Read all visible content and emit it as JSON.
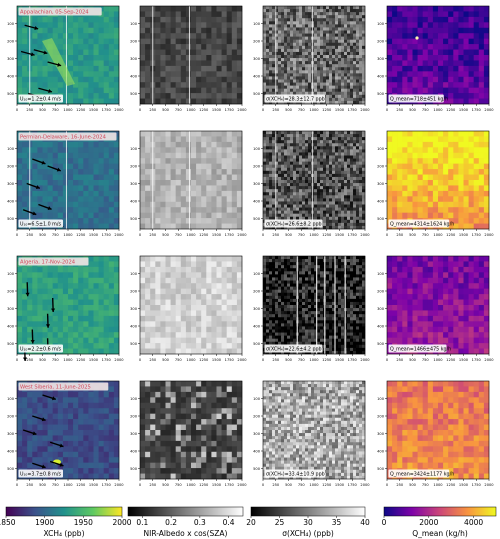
{
  "chart_data": {
    "type": "heatmap",
    "rows": [
      {
        "site": "Appalachian, 05-Sep-2024",
        "wind": "U₁₀=1.2±0.4 m/s",
        "sigma": "σ(XCH₄)=28.3±12.7 ppb",
        "q": "Q_mean=718±451 kg/h",
        "xch4_mean": 1930,
        "albedo_mean": 0.16,
        "sigma_mean": 28.3,
        "q_mean": 718,
        "plume": "faint diagonal"
      },
      {
        "site": "Permian-Delaware, 16-June-2024",
        "wind": "U₁₀=6.5±1.0 m/s",
        "sigma": "σ(XCH₄)=26.6±8.2 ppb",
        "q": "Q_mean=4314±1624 kg/h",
        "xch4_mean": 1905,
        "albedo_mean": 0.33,
        "sigma_mean": 26.6,
        "q_mean": 4314,
        "plume": "none"
      },
      {
        "site": "Algeria, 17-Nov-2024",
        "wind": "U₁₀=2.2±0.6 m/s",
        "sigma": "σ(XCH₄)=22.6±4.2 ppb",
        "q": "Q_mean=1466±475 kg/h",
        "xch4_mean": 1935,
        "albedo_mean": 0.38,
        "sigma_mean": 22.6,
        "q_mean": 1466,
        "plume": "none"
      },
      {
        "site": "West Siberia, 11-June-2025",
        "wind": "U₁₀=3.7±0.8 m/s",
        "sigma": "σ(XCH₄)=33.4±10.9 ppb",
        "q": "Q_mean=3424±1177 kg/h",
        "xch4_mean": 1885,
        "albedo_mean": 0.14,
        "sigma_mean": 33.4,
        "q_mean": 3424,
        "plume": "compact"
      }
    ],
    "x_ticks": [
      "0",
      "250",
      "500",
      "750",
      "1000",
      "1250",
      "1500",
      "1750",
      "2000"
    ],
    "y_ticks": [
      "100",
      "200",
      "300",
      "400",
      "500"
    ],
    "colorbars": [
      {
        "label": "XCH₄ (ppb)",
        "ticks": [
          "1850",
          "1900",
          "1950",
          "2000"
        ],
        "range": [
          1850,
          2000
        ],
        "cmap": "viridis"
      },
      {
        "label": "NIR-Albedo x cos(SZA)",
        "ticks": [
          "0.1",
          "0.2",
          "0.3",
          "0.4"
        ],
        "range": [
          0.05,
          0.45
        ],
        "cmap": "gray"
      },
      {
        "label": "σ(XCH₄) (ppb)",
        "ticks": [
          "20",
          "25",
          "30",
          "35",
          "40"
        ],
        "range": [
          20,
          40
        ],
        "cmap": "gray"
      },
      {
        "label": "Q_mean (kg/h)",
        "ticks": [
          "0",
          "2000",
          "4000"
        ],
        "range": [
          0,
          5000
        ],
        "cmap": "plasma"
      }
    ],
    "wind_arrows": [
      [
        [
          330,
          250
        ],
        [
          150,
          110
        ],
        [
          80,
          260
        ],
        [
          220,
          500
        ],
        [
          600,
          320
        ],
        [
          420,
          470
        ]
      ],
      [
        [
          300,
          160
        ],
        [
          190,
          300
        ],
        [
          120,
          450
        ],
        [
          600,
          200
        ],
        [
          420,
          420
        ],
        [
          650,
          520
        ]
      ],
      [
        [
          200,
          150
        ],
        [
          600,
          330
        ],
        [
          150,
          520
        ],
        [
          700,
          240
        ],
        [
          300,
          420
        ],
        [
          600,
          470
        ]
      ],
      [
        [
          500,
          80
        ],
        [
          300,
          200
        ],
        [
          120,
          280
        ],
        [
          650,
          350
        ],
        [
          300,
          470
        ],
        [
          650,
          460
        ]
      ]
    ],
    "arrow_dirs": [
      15,
      20,
      88,
      18
    ]
  }
}
